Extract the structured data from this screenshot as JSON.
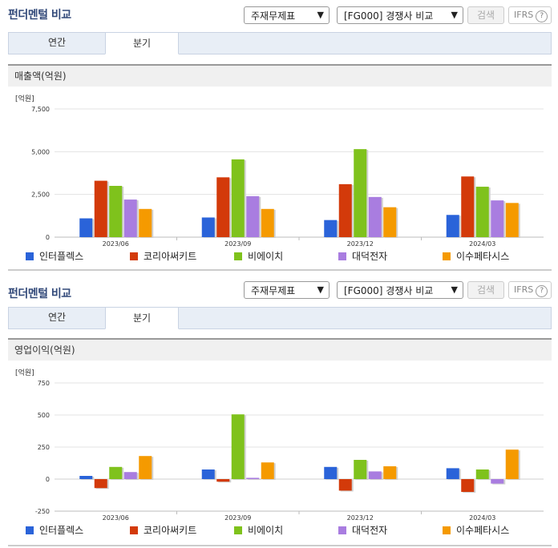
{
  "sections": [
    {
      "title": "펀더멘털 비교",
      "select1": "주재무제표",
      "select2": "[FG000] 경쟁사 비교",
      "search_btn": "검색",
      "ifrs": "IFRS",
      "tabs": [
        "연간",
        "분기"
      ],
      "active_tab": 1,
      "panel_title": "매출액(억원)"
    },
    {
      "title": "펀더멘털 비교",
      "select1": "주재무제표",
      "select2": "[FG000] 경쟁사 비교",
      "search_btn": "검색",
      "ifrs": "IFRS",
      "tabs": [
        "연간",
        "분기"
      ],
      "active_tab": 1,
      "panel_title": "영업이익(억원)"
    }
  ],
  "colors": {
    "title": "#334a7a",
    "series": [
      "#2a63d9",
      "#d33a0a",
      "#7fc21c",
      "#a97de0",
      "#f59a00"
    ]
  },
  "chart_data": [
    {
      "type": "bar",
      "unit_label": "[억원]",
      "categories": [
        "2023/06",
        "2023/09",
        "2023/12",
        "2024/03"
      ],
      "ylim": [
        0,
        7500
      ],
      "yticks": [
        0,
        2500,
        5000,
        7500
      ],
      "ytick_labels": [
        "0",
        "2,500",
        "5,000",
        "7,500"
      ],
      "series": [
        {
          "name": "인터플렉스",
          "values": [
            1100,
            1150,
            1000,
            1300
          ]
        },
        {
          "name": "코리아써키트",
          "values": [
            3300,
            3500,
            3100,
            3550
          ]
        },
        {
          "name": "비에이치",
          "values": [
            3000,
            4550,
            5150,
            2950
          ]
        },
        {
          "name": "대덕전자",
          "values": [
            2200,
            2400,
            2350,
            2150
          ]
        },
        {
          "name": "이수페타시스",
          "values": [
            1650,
            1650,
            1750,
            2000
          ]
        }
      ]
    },
    {
      "type": "bar",
      "unit_label": "[억원]",
      "categories": [
        "2023/06",
        "2023/09",
        "2023/12",
        "2024/03"
      ],
      "ylim": [
        -250,
        750
      ],
      "yticks": [
        -250,
        0,
        250,
        500,
        750
      ],
      "ytick_labels": [
        "-250",
        "0",
        "250",
        "500",
        "750"
      ],
      "series": [
        {
          "name": "인터플렉스",
          "values": [
            25,
            75,
            95,
            85
          ]
        },
        {
          "name": "코리아써키트",
          "values": [
            -70,
            -20,
            -90,
            -100
          ]
        },
        {
          "name": "비에이치",
          "values": [
            95,
            505,
            150,
            75
          ]
        },
        {
          "name": "대덕전자",
          "values": [
            55,
            10,
            60,
            -35
          ]
        },
        {
          "name": "이수페타시스",
          "values": [
            180,
            130,
            100,
            230
          ]
        }
      ]
    }
  ]
}
